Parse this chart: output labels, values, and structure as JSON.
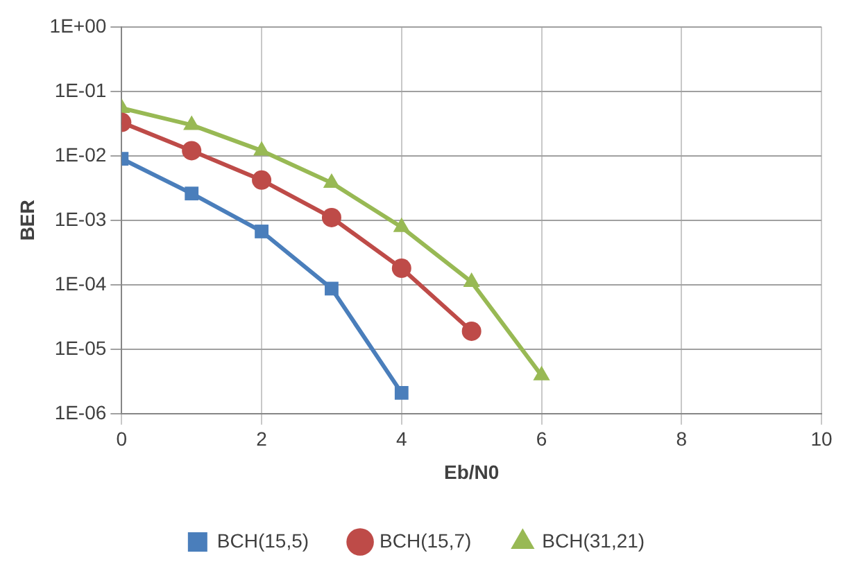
{
  "chart_data": {
    "type": "line",
    "xlabel": "Eb/N0",
    "ylabel": "BER",
    "log": "y",
    "grid": true,
    "legend": "bottom",
    "xlim": [
      0,
      10
    ],
    "xticks": [
      0,
      2,
      4,
      6,
      8,
      10
    ],
    "ylim": [
      1e-06,
      1
    ],
    "yticks": [
      {
        "value": 1e-06,
        "label": "1E-06"
      },
      {
        "value": 1e-05,
        "label": "1E-05"
      },
      {
        "value": 0.0001,
        "label": "1E-04"
      },
      {
        "value": 0.001,
        "label": "1E-03"
      },
      {
        "value": 0.01,
        "label": "1E-02"
      },
      {
        "value": 0.1,
        "label": "1E-01"
      },
      {
        "value": 1,
        "label": "1E+00"
      }
    ],
    "series": [
      {
        "name": "BCH(15,5)",
        "color": "#4a7ebb",
        "marker": "square",
        "x": [
          0,
          1,
          2,
          3,
          4
        ],
        "values": [
          0.009,
          0.0026,
          0.00067,
          8.7e-05,
          2.1e-06
        ]
      },
      {
        "name": "BCH(15,7)",
        "color": "#be4b48",
        "marker": "circle",
        "x": [
          0,
          1,
          2,
          3,
          4,
          5
        ],
        "values": [
          0.033,
          0.012,
          0.0042,
          0.0011,
          0.00018,
          1.9e-05
        ]
      },
      {
        "name": "BCH(31,21)",
        "color": "#98b954",
        "marker": "triangle",
        "x": [
          0,
          1,
          2,
          3,
          4,
          5,
          6
        ],
        "values": [
          0.055,
          0.03,
          0.012,
          0.0038,
          0.00078,
          0.00011,
          3.9e-06
        ]
      }
    ]
  }
}
